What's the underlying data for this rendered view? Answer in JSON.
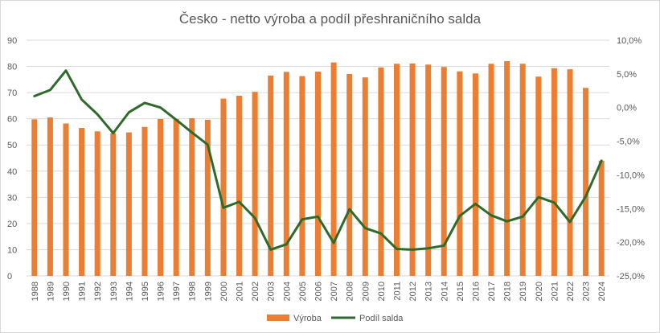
{
  "colors": {
    "bar": "#ED7D31",
    "line": "#2E6B2A",
    "grid": "#d9d9d9",
    "text": "#595959"
  },
  "chart_data": {
    "type": "bar",
    "title": "Česko - netto výroba a podíl přeshraničního salda",
    "categories": [
      "1988",
      "1989",
      "1990",
      "1991",
      "1992",
      "1993",
      "1994",
      "1995",
      "1996",
      "1997",
      "1998",
      "1999",
      "2000",
      "2001",
      "2002",
      "2003",
      "2004",
      "2005",
      "2006",
      "2007",
      "2008",
      "2009",
      "2010",
      "2011",
      "2012",
      "2013",
      "2014",
      "2015",
      "2016",
      "2017",
      "2018",
      "2019",
      "2020",
      "2021",
      "2022",
      "2023",
      "2024"
    ],
    "series": [
      {
        "name": "Výroba",
        "type": "bar",
        "axis": "left",
        "values": [
          59.8,
          60.5,
          58.2,
          56.5,
          55.2,
          54.5,
          54.8,
          56.9,
          59.9,
          59.9,
          60.2,
          59.6,
          67.7,
          68.8,
          70.3,
          76.5,
          77.9,
          76.3,
          78.0,
          81.5,
          77.1,
          75.8,
          79.6,
          81.0,
          81.1,
          80.7,
          79.8,
          78.1,
          77.3,
          81.0,
          82.0,
          81.0,
          76.1,
          79.3,
          78.9,
          71.8,
          44.0
        ]
      },
      {
        "name": "Podíl salda",
        "type": "line",
        "axis": "right",
        "values": [
          1.7,
          2.6,
          5.5,
          1.2,
          -1.0,
          -3.8,
          -0.7,
          0.7,
          0.0,
          -1.8,
          -3.7,
          -5.5,
          -14.9,
          -14.0,
          -16.4,
          -21.1,
          -20.3,
          -16.6,
          -16.2,
          -20.1,
          -15.1,
          -17.9,
          -18.7,
          -21.0,
          -21.1,
          -20.9,
          -20.5,
          -16.1,
          -14.3,
          -16.0,
          -16.9,
          -16.2,
          -13.3,
          -14.1,
          -17.0,
          -13.2,
          -7.9
        ]
      }
    ],
    "y_left": {
      "min": 0,
      "max": 90,
      "step": 10,
      "ticks": [
        "0",
        "10",
        "20",
        "30",
        "40",
        "50",
        "60",
        "70",
        "80",
        "90"
      ]
    },
    "y_right": {
      "min": -25,
      "max": 10,
      "step": 5,
      "ticks": [
        "-25,0%",
        "-20,0%",
        "-15,0%",
        "-10,0%",
        "-5,0%",
        "0,0%",
        "5,0%",
        "10,0%"
      ]
    },
    "grid": true,
    "legend_position": "bottom"
  }
}
